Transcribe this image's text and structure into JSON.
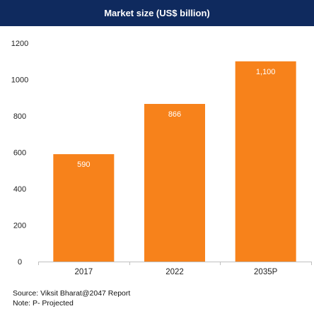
{
  "header": {
    "title": "Market size (US$ billion)"
  },
  "chart_data": {
    "type": "bar",
    "categories": [
      "2017",
      "2022",
      "2035P"
    ],
    "values": [
      590,
      866,
      1100
    ],
    "value_labels": [
      "590",
      "866",
      "1,100"
    ],
    "title": "Market size (US$ billion)",
    "ylim": [
      0,
      1200
    ],
    "yticks": [
      0,
      200,
      400,
      600,
      800,
      1000,
      1200
    ],
    "grid": false,
    "bar_color": "#f7821b",
    "label_color": "#ffffff"
  },
  "footer": {
    "source": "Source: Viksit Bharat@2047 Report",
    "note": "Note: P- Projected"
  }
}
